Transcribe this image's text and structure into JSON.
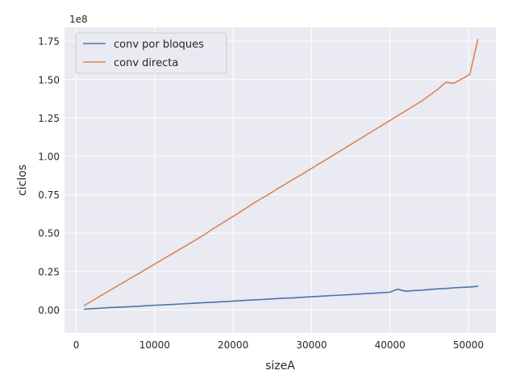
{
  "chart_data": {
    "type": "line",
    "xlabel": "sizeA",
    "ylabel": "ciclos",
    "offset_text": "1e8",
    "xlim": [
      -1500,
      53500
    ],
    "ylim": [
      -15000000,
      184000000
    ],
    "x_ticks": [
      0,
      10000,
      20000,
      30000,
      40000,
      50000
    ],
    "x_tick_labels": [
      "0",
      "10000",
      "20000",
      "30000",
      "40000",
      "50000"
    ],
    "y_ticks": [
      0,
      25000000,
      50000000,
      75000000,
      100000000,
      125000000,
      150000000,
      175000000
    ],
    "y_tick_labels": [
      "0.00",
      "0.25",
      "0.50",
      "0.75",
      "1.00",
      "1.25",
      "1.50",
      "1.75"
    ],
    "grid": true,
    "legend_position": "top-left",
    "colors": {
      "background": "#eaeaf2",
      "grid": "#ffffff",
      "series1": "#4c72b0",
      "series2": "#dd8452"
    },
    "series": [
      {
        "name": "conv por bloques",
        "x": [
          1024,
          2048,
          3072,
          4096,
          5120,
          6144,
          7168,
          8192,
          9216,
          10240,
          11264,
          12288,
          13312,
          14336,
          15360,
          16384,
          17408,
          18432,
          19456,
          20480,
          21504,
          22528,
          23552,
          24576,
          25600,
          26624,
          27648,
          28672,
          29696,
          30720,
          31744,
          32768,
          33792,
          34816,
          35840,
          36864,
          37888,
          38912,
          39936,
          40960,
          41984,
          43008,
          44032,
          45056,
          46080,
          47104,
          48128,
          49152,
          50176,
          51200
        ],
        "y": [
          500000,
          800000,
          1100000,
          1500000,
          1700000,
          1900000,
          2200000,
          2500000,
          2800000,
          3100000,
          3300000,
          3600000,
          3900000,
          4200000,
          4500000,
          4800000,
          5000000,
          5300000,
          5600000,
          5900000,
          6200000,
          6500000,
          6800000,
          7100000,
          7400000,
          7700000,
          7900000,
          8200000,
          8500000,
          8800000,
          9100000,
          9400000,
          9700000,
          10000000,
          10300000,
          10600000,
          10900000,
          11200000,
          11500000,
          13500000,
          12200000,
          12600000,
          12900000,
          13300000,
          13700000,
          14000000,
          14400000,
          14700000,
          15000000,
          15400000
        ]
      },
      {
        "name": "conv directa",
        "x": [
          1024,
          2048,
          3072,
          4096,
          5120,
          6144,
          7168,
          8192,
          9216,
          10240,
          11264,
          12288,
          13312,
          14336,
          15360,
          16384,
          17408,
          18432,
          19456,
          20480,
          21504,
          22528,
          23552,
          24576,
          25600,
          26624,
          27648,
          28672,
          29696,
          30720,
          31744,
          32768,
          33792,
          34816,
          35840,
          36864,
          37888,
          38912,
          39936,
          40960,
          41984,
          43008,
          44032,
          45056,
          46080,
          47104,
          48128,
          49152,
          50176,
          51200
        ],
        "y": [
          2900000,
          6000000,
          9100000,
          12200000,
          15300000,
          18300000,
          21400000,
          24400000,
          27500000,
          30600000,
          33700000,
          36700000,
          39800000,
          42900000,
          46000000,
          49200000,
          52800000,
          56000000,
          59200000,
          62400000,
          65800000,
          69200000,
          72400000,
          75400000,
          78700000,
          81800000,
          85000000,
          88000000,
          91200000,
          94400000,
          97600000,
          100800000,
          104000000,
          107200000,
          110400000,
          113600000,
          116800000,
          120000000,
          123200000,
          126400000,
          129600000,
          132800000,
          136000000,
          139800000,
          143600000,
          148200000,
          147600000,
          150400000,
          153400000,
          176000000
        ]
      }
    ]
  }
}
